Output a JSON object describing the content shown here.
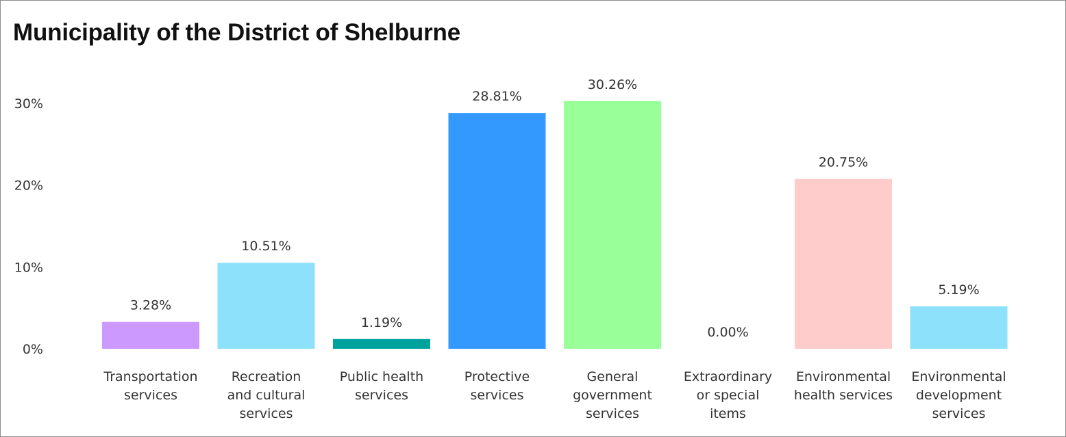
{
  "title": "Municipality of the District of Shelburne",
  "chart_data": {
    "type": "bar",
    "title": "Municipality of the District of Shelburne",
    "xlabel": "",
    "ylabel": "",
    "ylim": [
      0,
      32
    ],
    "grid": false,
    "legend": "none",
    "y_ticks": [
      0,
      10,
      20,
      30
    ],
    "y_tick_labels": [
      "0%",
      "10%",
      "20%",
      "30%"
    ],
    "categories": [
      [
        "Transportation",
        "services"
      ],
      [
        "Recreation",
        "and cultural",
        "services"
      ],
      [
        "Public health",
        "services"
      ],
      [
        "Protective",
        "services"
      ],
      [
        "General",
        "government",
        "services"
      ],
      [
        "Extraordinary",
        "or special",
        "items"
      ],
      [
        "Environmental",
        "health services"
      ],
      [
        "Environmental",
        "development",
        "services"
      ]
    ],
    "values": [
      3.28,
      10.51,
      1.19,
      28.81,
      30.26,
      0.0,
      20.75,
      5.19
    ],
    "data_labels": [
      "3.28%",
      "10.51%",
      "1.19%",
      "28.81%",
      "30.26%",
      "0.00%",
      "20.75%",
      "5.19%"
    ],
    "colors": [
      "#CC99FF",
      "#8EE1FB",
      "#00A29E",
      "#3399FF",
      "#99FF99",
      "#9E9E9E",
      "#FFCCCC",
      "#8EE1FB"
    ]
  }
}
